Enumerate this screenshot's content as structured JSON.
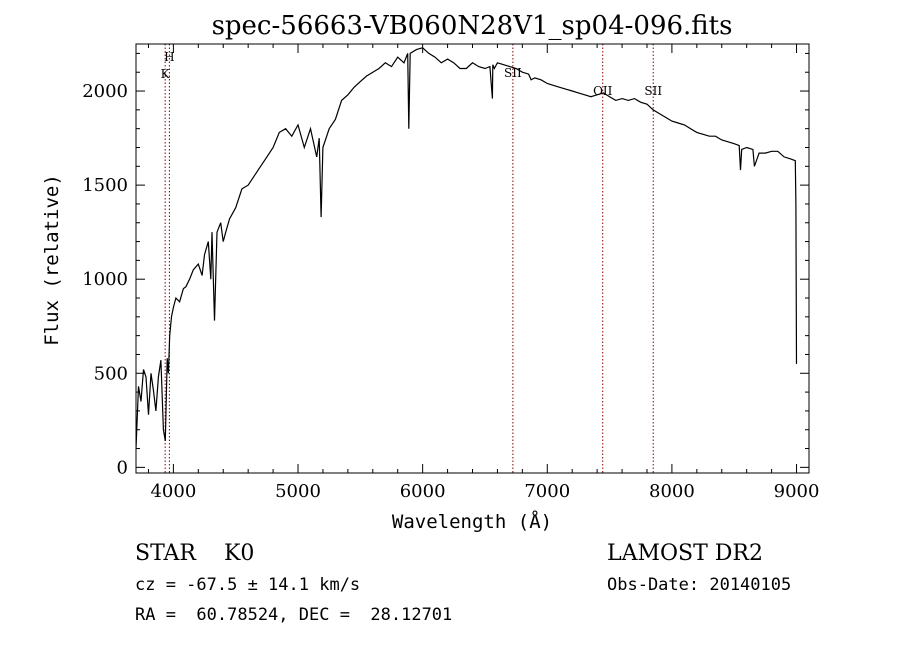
{
  "chart_data": {
    "type": "line",
    "title": "spec-56663-VB060N28V1_sp04-096.fits",
    "xlabel": "Wavelength (Å)",
    "ylabel": "Flux (relative)",
    "xlim": [
      3700,
      9100
    ],
    "ylim": [
      -30,
      2250
    ],
    "xticks": [
      4000,
      5000,
      6000,
      7000,
      8000,
      9000
    ],
    "yticks": [
      0,
      500,
      1000,
      1500,
      2000
    ],
    "grid": false,
    "line_color": "#000000",
    "marker_color": "#8b0000",
    "series": [
      {
        "name": "flux",
        "x": [
          3700,
          3720,
          3740,
          3760,
          3780,
          3800,
          3820,
          3840,
          3860,
          3880,
          3900,
          3920,
          3935,
          3950,
          3960,
          3970,
          3985,
          4000,
          4020,
          4050,
          4080,
          4100,
          4130,
          4160,
          4200,
          4230,
          4250,
          4280,
          4300,
          4310,
          4330,
          4350,
          4380,
          4400,
          4420,
          4450,
          4500,
          4550,
          4600,
          4650,
          4700,
          4750,
          4800,
          4850,
          4900,
          4950,
          5000,
          5050,
          5100,
          5150,
          5170,
          5185,
          5200,
          5250,
          5300,
          5350,
          5400,
          5450,
          5500,
          5550,
          5600,
          5650,
          5700,
          5750,
          5800,
          5850,
          5880,
          5889,
          5900,
          5950,
          6000,
          6050,
          6100,
          6150,
          6200,
          6250,
          6300,
          6350,
          6400,
          6450,
          6500,
          6540,
          6560,
          6563,
          6575,
          6600,
          6650,
          6700,
          6750,
          6800,
          6850,
          6870,
          6900,
          6950,
          7000,
          7050,
          7100,
          7150,
          7200,
          7250,
          7300,
          7350,
          7400,
          7450,
          7500,
          7550,
          7600,
          7650,
          7700,
          7750,
          7800,
          7850,
          7900,
          7950,
          8000,
          8050,
          8100,
          8150,
          8200,
          8250,
          8300,
          8350,
          8400,
          8450,
          8500,
          8540,
          8550,
          8560,
          8600,
          8650,
          8662,
          8700,
          8750,
          8800,
          8850,
          8900,
          8950,
          8990,
          8995,
          9000
        ],
        "y": [
          100,
          430,
          350,
          520,
          480,
          280,
          500,
          410,
          300,
          480,
          570,
          200,
          140,
          580,
          500,
          700,
          800,
          850,
          900,
          880,
          950,
          960,
          1000,
          1050,
          1080,
          1020,
          1130,
          1200,
          1000,
          1250,
          780,
          1250,
          1300,
          1200,
          1250,
          1320,
          1380,
          1480,
          1500,
          1550,
          1600,
          1650,
          1700,
          1780,
          1800,
          1760,
          1820,
          1700,
          1800,
          1650,
          1750,
          1330,
          1700,
          1800,
          1850,
          1950,
          1980,
          2020,
          2050,
          2080,
          2100,
          2120,
          2150,
          2130,
          2180,
          2150,
          2200,
          1800,
          2200,
          2220,
          2230,
          2200,
          2180,
          2150,
          2170,
          2150,
          2120,
          2120,
          2150,
          2130,
          2120,
          2130,
          1960,
          2140,
          2120,
          2150,
          2140,
          2130,
          2120,
          2100,
          2090,
          2060,
          2070,
          2060,
          2040,
          2030,
          2020,
          2010,
          2000,
          1990,
          1980,
          1970,
          1980,
          1990,
          1970,
          1950,
          1960,
          1950,
          1960,
          1940,
          1930,
          1900,
          1880,
          1860,
          1840,
          1830,
          1820,
          1800,
          1780,
          1770,
          1760,
          1760,
          1740,
          1730,
          1720,
          1710,
          1580,
          1690,
          1700,
          1690,
          1600,
          1670,
          1670,
          1680,
          1680,
          1650,
          1640,
          1630,
          1400,
          550
        ]
      }
    ],
    "line_markers": [
      {
        "label": "H",
        "x": 3968
      },
      {
        "label": "K",
        "x": 3934
      },
      {
        "label": "SII",
        "x": 6724
      },
      {
        "label": "OII",
        "x": 7445
      },
      {
        "label": "SII",
        "x": 7850
      }
    ]
  },
  "info": {
    "class_line": "STAR    K0",
    "survey": "LAMOST DR2",
    "redshift": "cz = -67.5 ± 14.1 km/s",
    "obs_date": "Obs-Date: 20140105",
    "coords": "RA =  60.78524, DEC =  28.12701"
  }
}
